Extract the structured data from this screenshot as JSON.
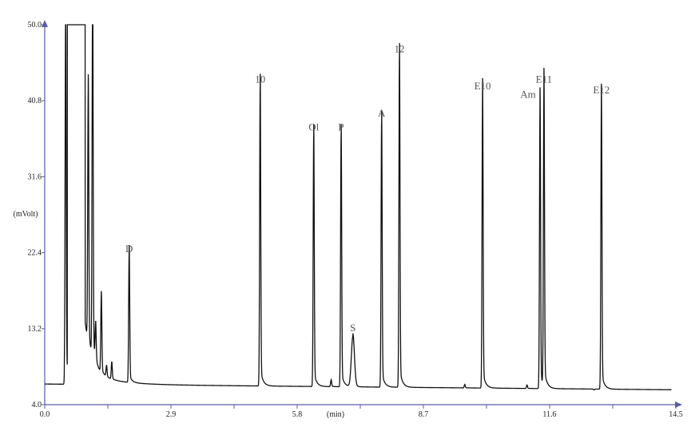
{
  "chart_data": {
    "type": "line",
    "title": "",
    "xlabel": "(min)",
    "ylabel": "(mVolt)",
    "xlim": [
      0.0,
      14.5
    ],
    "ylim": [
      4.0,
      50.0
    ],
    "xticks": [
      "0.0",
      "2.9",
      "5.8",
      "8.7",
      "11.6",
      "14.5"
    ],
    "yticks": [
      "4.0",
      "13.2",
      "22.4",
      "31.6",
      "40.8",
      "50.0"
    ],
    "grid": false,
    "colors": {
      "axis": "#5b5ba8",
      "trace": "#111111",
      "peak_label": "#555555"
    },
    "baseline": {
      "start": 6.5,
      "end": 5.8
    },
    "saturated_range": [
      0.52,
      0.93
    ],
    "peaks": [
      {
        "label": "",
        "x": 0.48,
        "y": 50.0
      },
      {
        "label": "",
        "x": 0.56,
        "y": 50.0
      },
      {
        "label": "",
        "x": 0.64,
        "y": 50.0
      },
      {
        "label": "",
        "x": 1.0,
        "y": 36.8
      },
      {
        "label": "",
        "x": 1.1,
        "y": 50.0
      },
      {
        "label": "",
        "x": 1.17,
        "y": 10.5
      },
      {
        "label": "",
        "x": 1.3,
        "y": 15.5
      },
      {
        "label": "",
        "x": 1.42,
        "y": 7.5
      },
      {
        "label": "",
        "x": 1.54,
        "y": 8.2
      },
      {
        "label": "D",
        "x": 1.94,
        "y": 21.9
      },
      {
        "label": "10",
        "x": 4.95,
        "y": 42.4
      },
      {
        "label": "Ol",
        "x": 6.18,
        "y": 36.6
      },
      {
        "label": "",
        "x": 6.58,
        "y": 7.0
      },
      {
        "label": "P",
        "x": 6.81,
        "y": 36.6
      },
      {
        "label": "S",
        "x": 7.08,
        "y": 12.3
      },
      {
        "label": "A",
        "x": 7.74,
        "y": 38.3
      },
      {
        "label": "12",
        "x": 8.15,
        "y": 46.1
      },
      {
        "label": "",
        "x": 9.65,
        "y": 6.6
      },
      {
        "label": "E10",
        "x": 10.06,
        "y": 41.6
      },
      {
        "label": "",
        "x": 11.08,
        "y": 6.6
      },
      {
        "label": "Am",
        "x": 11.38,
        "y": 40.6
      },
      {
        "label": "E11",
        "x": 11.47,
        "y": 42.4
      },
      {
        "label": "",
        "x": 12.62,
        "y": 6.1
      },
      {
        "label": "E12",
        "x": 12.79,
        "y": 41.1
      }
    ]
  }
}
